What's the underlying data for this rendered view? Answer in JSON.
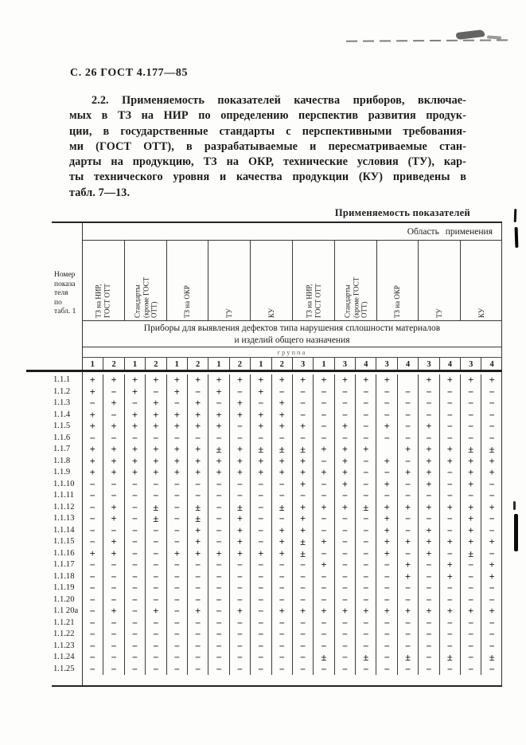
{
  "page": {
    "header": "С. 26 ГОСТ 4.177—85",
    "paragraph_lines": [
      "2.2. Применяемость показателей качества приборов, включае-",
      "мых в ТЗ на НИР по определению перспектив развития продук-",
      "ции, в государственные стандарты с перспективными требования-",
      "ми (ГОСТ ОТТ), в разрабатываемые и пересматриваемые стан-",
      "дарты на продукцию, ТЗ на ОКР, технические условия (ТУ), кар-",
      "ты технического уровня и качества продукции (КУ) приведены в",
      "табл. 7—13."
    ]
  },
  "table": {
    "title": "Применяемость показателей",
    "area_header": "Область применения",
    "row_header_lines": [
      "Номер",
      "показа",
      "теля",
      "по",
      "табл. 1"
    ],
    "col_headers": [
      [
        "ТЗ на НИР,",
        "ГОСТ ОТТ"
      ],
      [
        "Стандарты",
        "(кроме ГОСТ",
        "ОТТ)"
      ],
      [
        "ТЗ на ОКР"
      ],
      [
        "ТУ"
      ],
      [
        "КУ"
      ],
      [
        "ТЗ на НИР,",
        "ГОСТ ОТТ"
      ],
      [
        "Стандарты",
        "(кроме ГОСТ",
        "ОТТ)"
      ],
      [
        "ТЗ на ОКР"
      ],
      [
        "ТУ"
      ],
      [
        "КУ"
      ]
    ],
    "span_text_lines": [
      "Приборы для выявления дефектов типа нарушения сплошности материалов",
      "и изделий общего назначения"
    ],
    "group_label": "группа",
    "groups": [
      "1",
      "2",
      "1",
      "2",
      "1",
      "2",
      "1",
      "2",
      "1",
      "2",
      "3",
      "1",
      "3",
      "4",
      "3",
      "4",
      "3",
      "4",
      "3",
      "4"
    ],
    "rows": [
      {
        "label": "1.1.1",
        "cells": [
          "+",
          "+",
          "+",
          "+",
          "+",
          "+",
          "+",
          "+",
          "+",
          "+",
          "+",
          "+",
          "+",
          "+",
          "+",
          "",
          "+",
          "+",
          "+",
          "+"
        ]
      },
      {
        "label": "1.1.2",
        "cells": [
          "+",
          "−",
          "+",
          "−",
          "+",
          "−",
          "+",
          "−",
          "+",
          "−",
          "−",
          "−",
          "−",
          "−",
          "−",
          "−",
          "−",
          "−",
          "−",
          "−"
        ]
      },
      {
        "label": "1.1.3",
        "cells": [
          "−",
          "+",
          "−",
          "+",
          "−",
          "+",
          "−",
          "+",
          "−",
          "+",
          "−",
          "−",
          "−",
          "−",
          "−",
          "−",
          "−",
          "−",
          "−",
          "−"
        ]
      },
      {
        "label": "1.1.4",
        "cells": [
          "+",
          "−",
          "+",
          "+",
          "+",
          "+",
          "+",
          "+",
          "+",
          "+",
          "−",
          "−",
          "−",
          "−",
          "−",
          "−",
          "−",
          "−",
          "−",
          "−"
        ]
      },
      {
        "label": "1.1.5",
        "cells": [
          "+",
          "+",
          "+",
          "+",
          "+",
          "+",
          "+",
          "−",
          "+",
          "+",
          "+",
          "−",
          "+",
          "−",
          "+",
          "−",
          "+",
          "−",
          "−",
          "−"
        ]
      },
      {
        "label": "1.1.6",
        "cells": [
          "−",
          "−",
          "−",
          "−",
          "−",
          "−",
          "−",
          "−",
          "−",
          "−",
          "−",
          "−",
          "−",
          "−",
          "−",
          "−",
          "−",
          "−",
          "−",
          "−"
        ]
      },
      {
        "label": "1.1.7",
        "cells": [
          "+",
          "+",
          "+",
          "+",
          "+",
          "+",
          "±",
          "+",
          "±",
          "±",
          "±",
          "+",
          "+",
          "+",
          "",
          "+",
          "+",
          "+",
          "±",
          "±"
        ]
      },
      {
        "label": "1.1.8",
        "cells": [
          "+",
          "+",
          "+",
          "+",
          "+",
          "+",
          "+",
          "+",
          "+",
          "+",
          "+",
          "−",
          "+",
          "−",
          "+",
          "−",
          "+",
          "+",
          "+",
          "+"
        ]
      },
      {
        "label": "1.1.9",
        "cells": [
          "+",
          "+",
          "+",
          "+",
          "+",
          "+",
          "+",
          "+",
          "+",
          "+",
          "+",
          "+",
          "+",
          "−",
          "−",
          "+",
          "+",
          "−",
          "+",
          "+"
        ]
      },
      {
        "label": "1.1.10",
        "cells": [
          "−",
          "−",
          "−",
          "−",
          "−",
          "−",
          "−",
          "−",
          "−",
          "−",
          "+",
          "−",
          "+",
          "−",
          "+",
          "−",
          "+",
          "−",
          "+",
          "−"
        ]
      },
      {
        "label": "1.1.11",
        "cells": [
          "−",
          "−",
          "−",
          "−",
          "−",
          "−",
          "−",
          "−",
          "−",
          "−",
          "−",
          "−",
          "−",
          "−",
          "−",
          "−",
          "−",
          "−",
          "−",
          "−"
        ]
      },
      {
        "label": "1.1.12",
        "cells": [
          "−",
          "+",
          "−",
          "±",
          "−",
          "±",
          "−",
          "±",
          "−",
          "±",
          "+",
          "+",
          "+",
          "±",
          "+",
          "+",
          "+",
          "+",
          "+",
          "+"
        ]
      },
      {
        "label": "1.1.13",
        "cells": [
          "−",
          "+",
          "−",
          "±",
          "−",
          "±",
          "−",
          "+",
          "−",
          "−",
          "+",
          "−",
          "−",
          "−",
          "+",
          "−",
          "−",
          "−",
          "+",
          "−"
        ]
      },
      {
        "label": "1.1.14",
        "cells": [
          "−",
          "−",
          "−",
          "−",
          "−",
          "+",
          "−",
          "+",
          "−",
          "+",
          "+",
          "−",
          "−",
          "−",
          "+",
          "−",
          "+",
          "−",
          "+",
          "−"
        ]
      },
      {
        "label": "1.1.15",
        "cells": [
          "−",
          "+",
          "−",
          "−",
          "−",
          "+",
          "−",
          "+",
          "−",
          "+",
          "±",
          "+",
          "−",
          "−",
          "+",
          "+",
          "+",
          "+",
          "+",
          "+"
        ]
      },
      {
        "label": "1.1.16",
        "cells": [
          "+",
          "+",
          "−",
          "−",
          "+",
          "+",
          "+",
          "+",
          "+",
          "+",
          "±",
          "−",
          "−",
          "−",
          "+",
          "−",
          "+",
          "−",
          "±",
          "−"
        ]
      },
      {
        "label": "1.1.17",
        "cells": [
          "−",
          "−",
          "−",
          "−",
          "−",
          "−",
          "−",
          "−",
          "−",
          "−",
          "−",
          "+",
          "−",
          "−",
          "−",
          "+",
          "−",
          "+",
          "−",
          "+"
        ]
      },
      {
        "label": "1.1.18",
        "cells": [
          "−",
          "−",
          "−",
          "−",
          "−",
          "−",
          "−",
          "−",
          "−",
          "−",
          "−",
          "−",
          "−",
          "−",
          "−",
          "+",
          "−",
          "+",
          "−",
          "+"
        ]
      },
      {
        "label": "1.1.19",
        "cells": [
          "−",
          "−",
          "−",
          "−",
          "−",
          "−",
          "−",
          "−",
          "−",
          "−",
          "−",
          "−",
          "−",
          "−",
          "−",
          "−",
          "−",
          "−",
          "−",
          "−"
        ]
      },
      {
        "label": "1.1.20",
        "cells": [
          "−",
          "−",
          "−",
          "−",
          "−",
          "−",
          "−",
          "−",
          "−",
          "−",
          "−",
          "−",
          "−",
          "−",
          "−",
          "−",
          "−",
          "−",
          "−",
          "−"
        ]
      },
      {
        "label": "1.1 20а",
        "cells": [
          "−",
          "+",
          "−",
          "+",
          "−",
          "+",
          "−",
          "+",
          "−",
          "+",
          "+",
          "+",
          "+",
          "+",
          "+",
          "+",
          "+",
          "+",
          "+",
          "+"
        ]
      },
      {
        "label": "1.1.21",
        "cells": [
          "−",
          "−",
          "−",
          "−",
          "−",
          "−",
          "−",
          "−",
          "−",
          "−",
          "−",
          "−",
          "−",
          "−",
          "−",
          "−",
          "−",
          "−",
          "−",
          "−"
        ]
      },
      {
        "label": "1.1.22",
        "cells": [
          "−",
          "−",
          "−",
          "−",
          "−",
          "−",
          "−",
          "−",
          "−",
          "−",
          "−",
          "−",
          "−",
          "−",
          "−",
          "−",
          "−",
          "−",
          "−",
          "−"
        ]
      },
      {
        "label": "1.1.23",
        "cells": [
          "−",
          "−",
          "−",
          "−",
          "−",
          "−",
          "−",
          "−",
          "−",
          "−",
          "−",
          "−",
          "−",
          "−",
          "−",
          "−",
          "−",
          "−",
          "−",
          "−"
        ]
      },
      {
        "label": "1.1.24",
        "cells": [
          "−",
          "−",
          "−",
          "−",
          "−",
          "−",
          "−",
          "−",
          "−",
          "−",
          "−",
          "±",
          "−",
          "±",
          "−",
          "±",
          "−",
          "±",
          "−",
          "±"
        ]
      },
      {
        "label": "1.1.25",
        "cells": [
          "−",
          "−",
          "−",
          "−",
          "−",
          "−",
          "−",
          "−",
          "−",
          "−",
          "−",
          "−",
          "−",
          "−",
          "−",
          "−",
          "−",
          "−",
          "−",
          "−"
        ]
      }
    ]
  }
}
